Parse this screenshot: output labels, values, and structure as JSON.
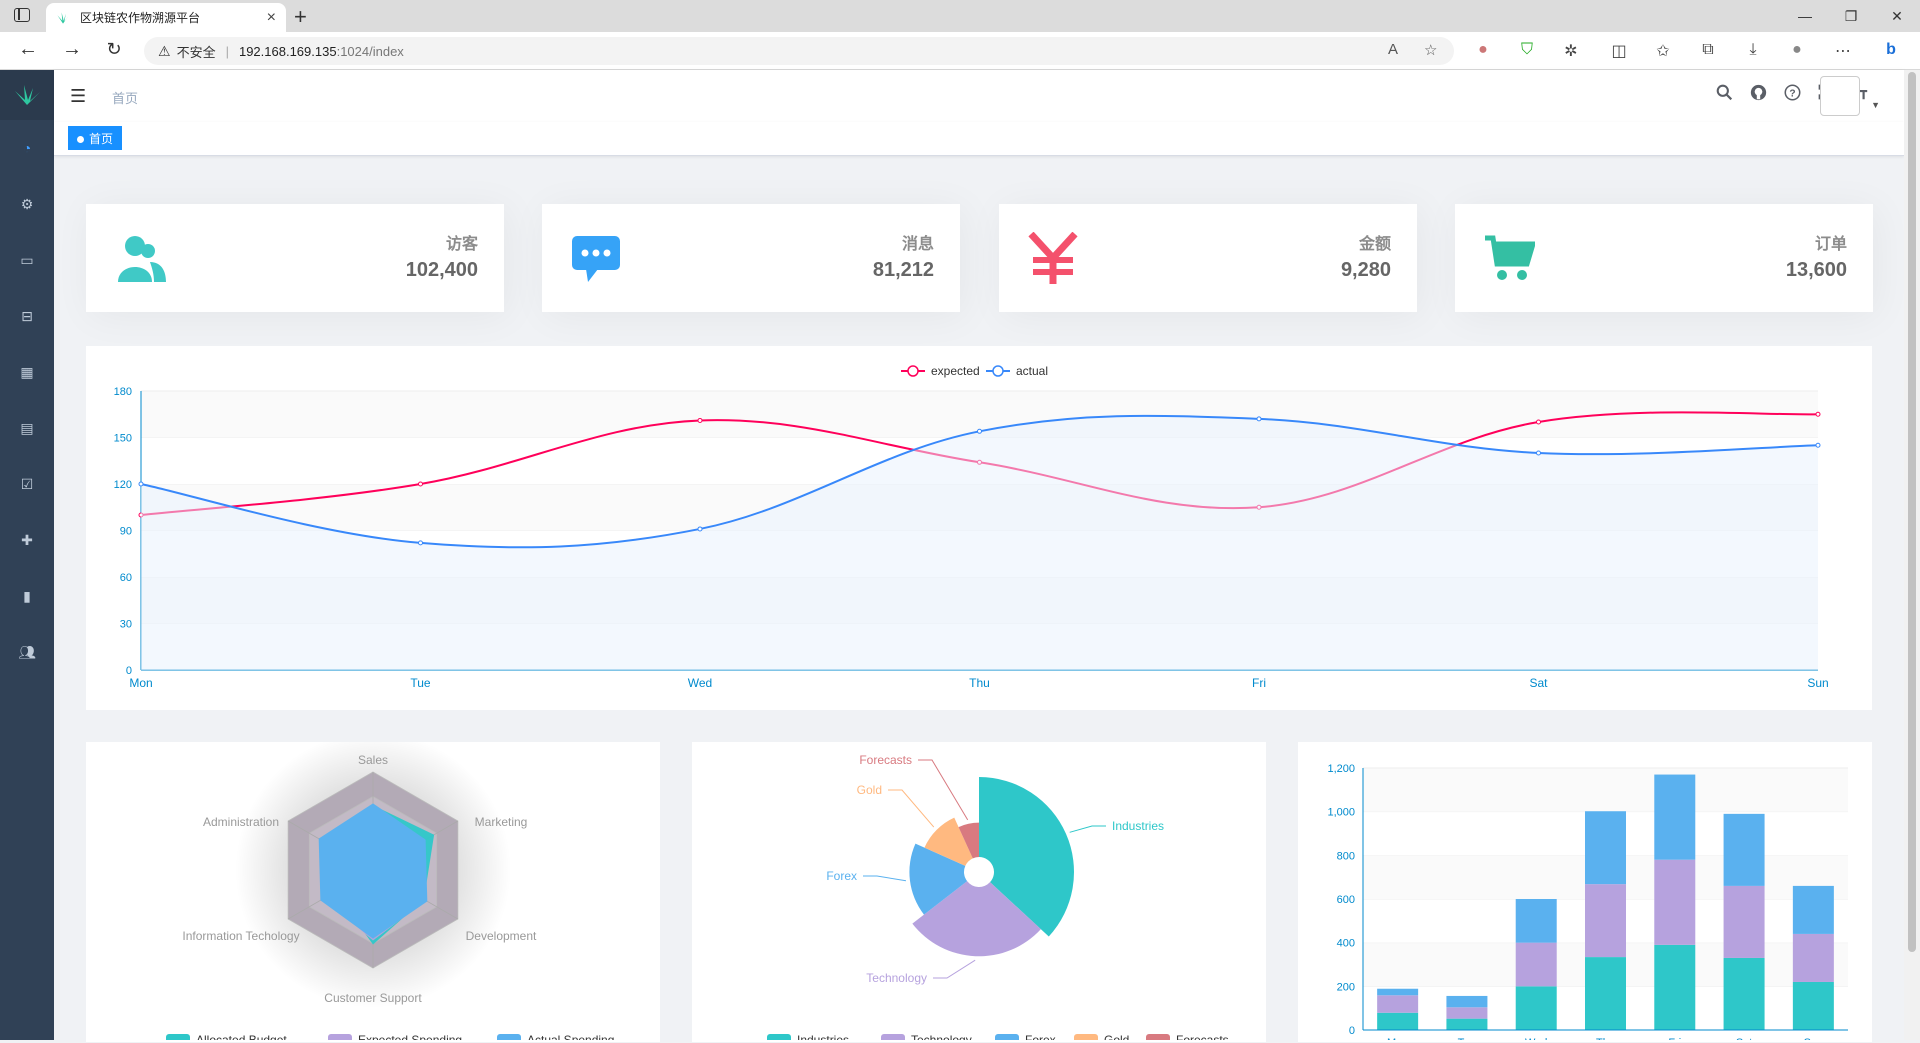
{
  "browser": {
    "tab_title": "区块链农作物溯源平台",
    "insecure_label": "不安全",
    "url_host": "192.168.169.135",
    "url_path": ":1024/index"
  },
  "navbar": {
    "breadcrumb": "首页"
  },
  "tags": [
    {
      "label": "首页",
      "active": true
    }
  ],
  "sidebar": {
    "items": [
      "dashboard-icon",
      "gear-icon",
      "monitor-icon",
      "briefcase-icon",
      "table-icon",
      "document-icon",
      "checkbox-icon",
      "plus-move-icon",
      "phone-icon",
      "users-icon"
    ]
  },
  "cards": [
    {
      "label": "访客",
      "value": "102,400",
      "icon": "people-icon",
      "color": "#40c9c6"
    },
    {
      "label": "消息",
      "value": "81,212",
      "icon": "message-icon",
      "color": "#36a3f7"
    },
    {
      "label": "金额",
      "value": "9,280",
      "icon": "yuan-icon",
      "color": "#f4516c"
    },
    {
      "label": "订单",
      "value": "13,600",
      "icon": "cart-icon",
      "color": "#34bfa3"
    }
  ],
  "chart_data": [
    {
      "type": "line",
      "categories": [
        "Mon",
        "Tue",
        "Wed",
        "Thu",
        "Fri",
        "Sat",
        "Sun"
      ],
      "series": [
        {
          "name": "expected",
          "values": [
            100,
            120,
            161,
            134,
            105,
            160,
            165
          ],
          "color": "#FF005A"
        },
        {
          "name": "actual",
          "values": [
            120,
            82,
            91,
            154,
            162,
            140,
            145
          ],
          "color": "#3888fa"
        }
      ],
      "ylim": [
        0,
        180
      ],
      "yticks": [
        "0",
        "30",
        "60",
        "90",
        "120",
        "150",
        "180"
      ],
      "legend": "top-center",
      "grid": true
    },
    {
      "type": "radar",
      "indicators": [
        "Sales",
        "Marketing",
        "Development",
        "Customer Support",
        "Information Techology",
        "Administration"
      ],
      "series": [
        {
          "name": "Allocated Budget",
          "color": "#2ec7c9"
        },
        {
          "name": "Expected Spending",
          "color": "#b6a2de"
        },
        {
          "name": "Actual Spending",
          "color": "#5ab1ef"
        }
      ],
      "legend": "bottom"
    },
    {
      "type": "pie",
      "slices": [
        {
          "name": "Industries",
          "value": 320,
          "color": "#2ec7c9"
        },
        {
          "name": "Technology",
          "value": 240,
          "color": "#b6a2de"
        },
        {
          "name": "Forex",
          "value": 149,
          "color": "#5ab1ef"
        },
        {
          "name": "Gold",
          "value": 100,
          "color": "#ffb980"
        },
        {
          "name": "Forecasts",
          "value": 59,
          "color": "#d87a80"
        }
      ],
      "rose": true,
      "legend": "bottom"
    },
    {
      "type": "bar",
      "stacked": true,
      "categories": [
        "Mon",
        "Tue",
        "Wed",
        "Thu",
        "Fri",
        "Sat",
        "Sun"
      ],
      "series": [
        {
          "values": [
            79,
            52,
            200,
            334,
            390,
            330,
            220
          ],
          "color": "#2ec7c9"
        },
        {
          "values": [
            80,
            52,
            200,
            334,
            390,
            330,
            220
          ],
          "color": "#b6a2de"
        },
        {
          "values": [
            30,
            52,
            200,
            334,
            390,
            330,
            220
          ],
          "color": "#5ab1ef"
        }
      ],
      "ylim": [
        0,
        1200
      ],
      "yticks": [
        "0",
        "200",
        "400",
        "600",
        "800",
        "1,000",
        "1,200"
      ]
    }
  ]
}
